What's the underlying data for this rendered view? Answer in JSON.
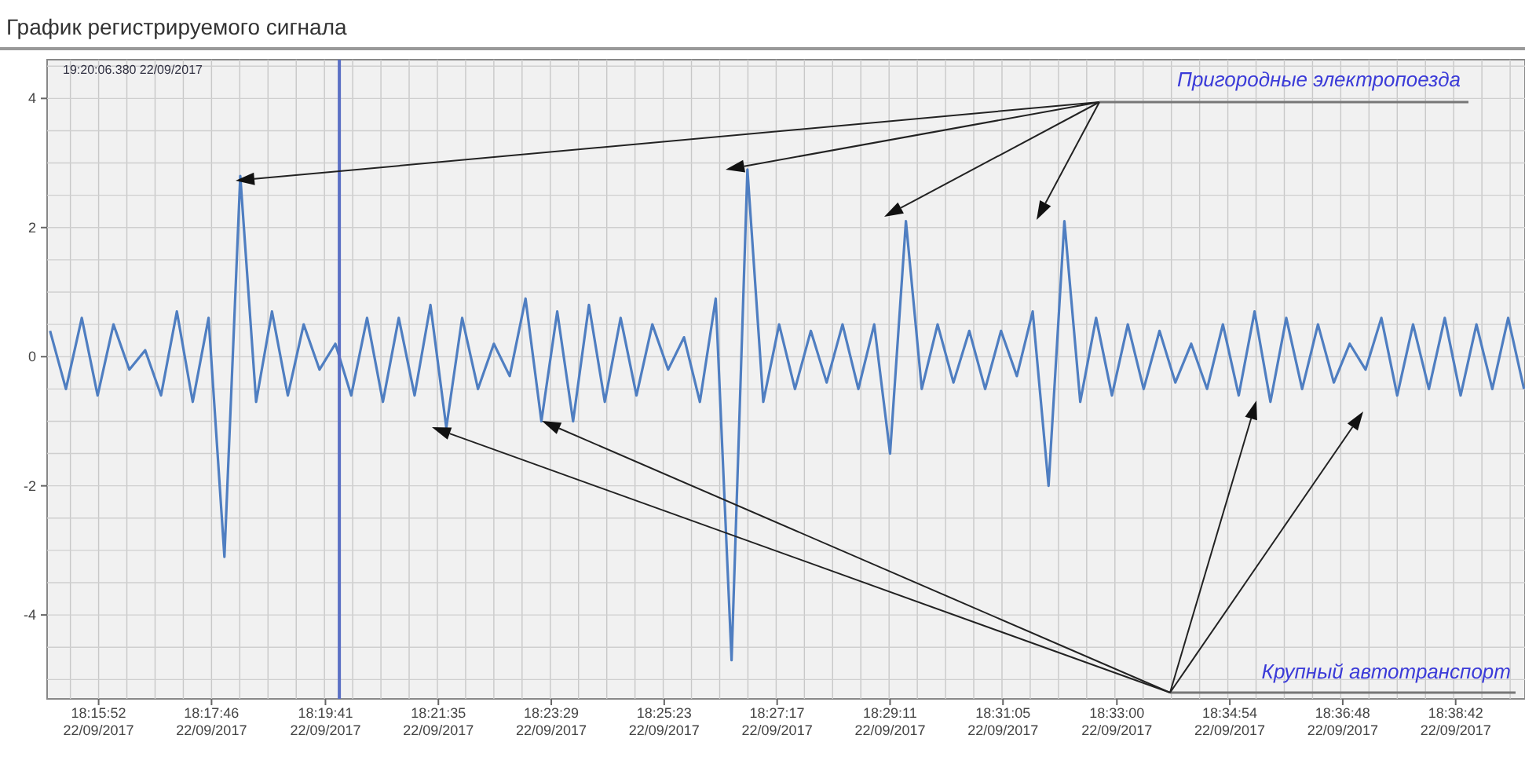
{
  "chart_data": {
    "type": "line",
    "title": "График регистрируемого сигнала",
    "annotations": [
      "19:20:06.380 22/09/2017",
      "Пригородные электропоезда",
      "Крупный автотранспорт"
    ],
    "x": [
      "2017-09-22T18:15:03",
      "2017-09-22T18:15:19",
      "2017-09-22T18:15:35",
      "2017-09-22T18:15:51",
      "2017-09-22T18:16:07",
      "2017-09-22T18:16:23",
      "2017-09-22T18:16:39",
      "2017-09-22T18:16:55",
      "2017-09-22T18:17:11",
      "2017-09-22T18:17:27",
      "2017-09-22T18:17:43",
      "2017-09-22T18:17:59",
      "2017-09-22T18:18:15",
      "2017-09-22T18:18:31",
      "2017-09-22T18:18:47",
      "2017-09-22T18:19:03",
      "2017-09-22T18:19:19",
      "2017-09-22T18:19:35",
      "2017-09-22T18:19:51",
      "2017-09-22T18:20:07",
      "2017-09-22T18:20:23",
      "2017-09-22T18:20:39",
      "2017-09-22T18:20:55",
      "2017-09-22T18:21:11",
      "2017-09-22T18:21:27",
      "2017-09-22T18:21:43",
      "2017-09-22T18:21:59",
      "2017-09-22T18:22:15",
      "2017-09-22T18:22:31",
      "2017-09-22T18:22:47",
      "2017-09-22T18:23:03",
      "2017-09-22T18:23:19",
      "2017-09-22T18:23:35",
      "2017-09-22T18:23:51",
      "2017-09-22T18:24:07",
      "2017-09-22T18:24:23",
      "2017-09-22T18:24:39",
      "2017-09-22T18:24:55",
      "2017-09-22T18:25:11",
      "2017-09-22T18:25:27",
      "2017-09-22T18:25:43",
      "2017-09-22T18:25:59",
      "2017-09-22T18:26:15",
      "2017-09-22T18:26:31",
      "2017-09-22T18:26:47",
      "2017-09-22T18:27:03",
      "2017-09-22T18:27:19",
      "2017-09-22T18:27:35",
      "2017-09-22T18:27:51",
      "2017-09-22T18:28:07",
      "2017-09-22T18:28:23",
      "2017-09-22T18:28:39",
      "2017-09-22T18:28:55",
      "2017-09-22T18:29:11",
      "2017-09-22T18:29:27",
      "2017-09-22T18:29:43",
      "2017-09-22T18:29:59",
      "2017-09-22T18:30:15",
      "2017-09-22T18:30:31",
      "2017-09-22T18:30:47",
      "2017-09-22T18:31:03",
      "2017-09-22T18:31:19",
      "2017-09-22T18:31:35",
      "2017-09-22T18:31:51",
      "2017-09-22T18:32:07",
      "2017-09-22T18:32:23",
      "2017-09-22T18:32:39",
      "2017-09-22T18:32:55",
      "2017-09-22T18:33:11",
      "2017-09-22T18:33:27",
      "2017-09-22T18:33:43",
      "2017-09-22T18:33:59",
      "2017-09-22T18:34:15",
      "2017-09-22T18:34:31",
      "2017-09-22T18:34:47",
      "2017-09-22T18:35:03",
      "2017-09-22T18:35:19",
      "2017-09-22T18:35:35",
      "2017-09-22T18:35:51",
      "2017-09-22T18:36:07",
      "2017-09-22T18:36:23",
      "2017-09-22T18:36:39",
      "2017-09-22T18:36:55",
      "2017-09-22T18:37:11",
      "2017-09-22T18:37:27",
      "2017-09-22T18:37:43",
      "2017-09-22T18:37:59",
      "2017-09-22T18:38:15",
      "2017-09-22T18:38:31",
      "2017-09-22T18:38:47",
      "2017-09-22T18:39:03",
      "2017-09-22T18:39:19",
      "2017-09-22T18:39:35",
      "2017-09-22T18:39:51"
    ],
    "series": [
      {
        "color": "#4f7ec1",
        "values": [
          0.4,
          -0.5,
          0.6,
          -0.6,
          0.5,
          -0.2,
          0.1,
          -0.6,
          0.7,
          -0.7,
          0.6,
          -3.1,
          2.8,
          -0.7,
          0.7,
          -0.6,
          0.5,
          -0.2,
          0.2,
          -0.6,
          0.6,
          -0.7,
          0.6,
          -0.6,
          0.8,
          -1.1,
          0.6,
          -0.5,
          0.2,
          -0.3,
          0.9,
          -1.0,
          0.7,
          -1.0,
          0.8,
          -0.7,
          0.6,
          -0.6,
          0.5,
          -0.2,
          0.3,
          -0.7,
          0.9,
          -4.7,
          2.9,
          -0.7,
          0.5,
          -0.5,
          0.4,
          -0.4,
          0.5,
          -0.5,
          0.5,
          -1.5,
          2.1,
          -0.5,
          0.5,
          -0.4,
          0.4,
          -0.5,
          0.4,
          -0.3,
          0.7,
          -2.0,
          2.1,
          -0.7,
          0.6,
          -0.6,
          0.5,
          -0.5,
          0.4,
          -0.4,
          0.2,
          -0.5,
          0.5,
          -0.6,
          0.7,
          -0.7,
          0.6,
          -0.5,
          0.5,
          -0.4,
          0.2,
          -0.2,
          0.6,
          -0.6,
          0.5,
          -0.5,
          0.6,
          -0.6,
          0.5,
          -0.5,
          0.6,
          -0.5
        ]
      }
    ],
    "xlim": [
      "2017-09-22T18:15:00",
      "2017-09-22T18:39:52"
    ],
    "xticks": [
      {
        "value": "2017-09-22T18:15:52",
        "label": "18:15:52\n22/09/2017"
      },
      {
        "value": "2017-09-22T18:17:46",
        "label": "18:17:46\n22/09/2017"
      },
      {
        "value": "2017-09-22T18:19:41",
        "label": "18:19:41\n22/09/2017"
      },
      {
        "value": "2017-09-22T18:21:35",
        "label": "18:21:35\n22/09/2017"
      },
      {
        "value": "2017-09-22T18:23:29",
        "label": "18:23:29\n22/09/2017"
      },
      {
        "value": "2017-09-22T18:25:23",
        "label": "18:25:23\n22/09/2017"
      },
      {
        "value": "2017-09-22T18:27:17",
        "label": "18:27:17\n22/09/2017"
      },
      {
        "value": "2017-09-22T18:29:11",
        "label": "18:29:11\n22/09/2017"
      },
      {
        "value": "2017-09-22T18:31:05",
        "label": "18:31:05\n22/09/2017"
      },
      {
        "value": "2017-09-22T18:33:00",
        "label": "18:33:00\n22/09/2017"
      },
      {
        "value": "2017-09-22T18:34:54",
        "label": "18:34:54\n22/09/2017"
      },
      {
        "value": "2017-09-22T18:36:48",
        "label": "18:36:48\n22/09/2017"
      },
      {
        "value": "2017-09-22T18:38:42",
        "label": "18:38:42\n22/09/2017"
      }
    ],
    "ylim": [
      -5.3,
      4.6
    ],
    "yticks": [
      -4,
      -2,
      0,
      2,
      4
    ],
    "ref_lines": [
      {
        "axis": "x",
        "value": "2017-09-22T18:19:55",
        "color": "#5a6fc4"
      }
    ],
    "grid": true,
    "line_style": "solid",
    "marker": "none"
  }
}
